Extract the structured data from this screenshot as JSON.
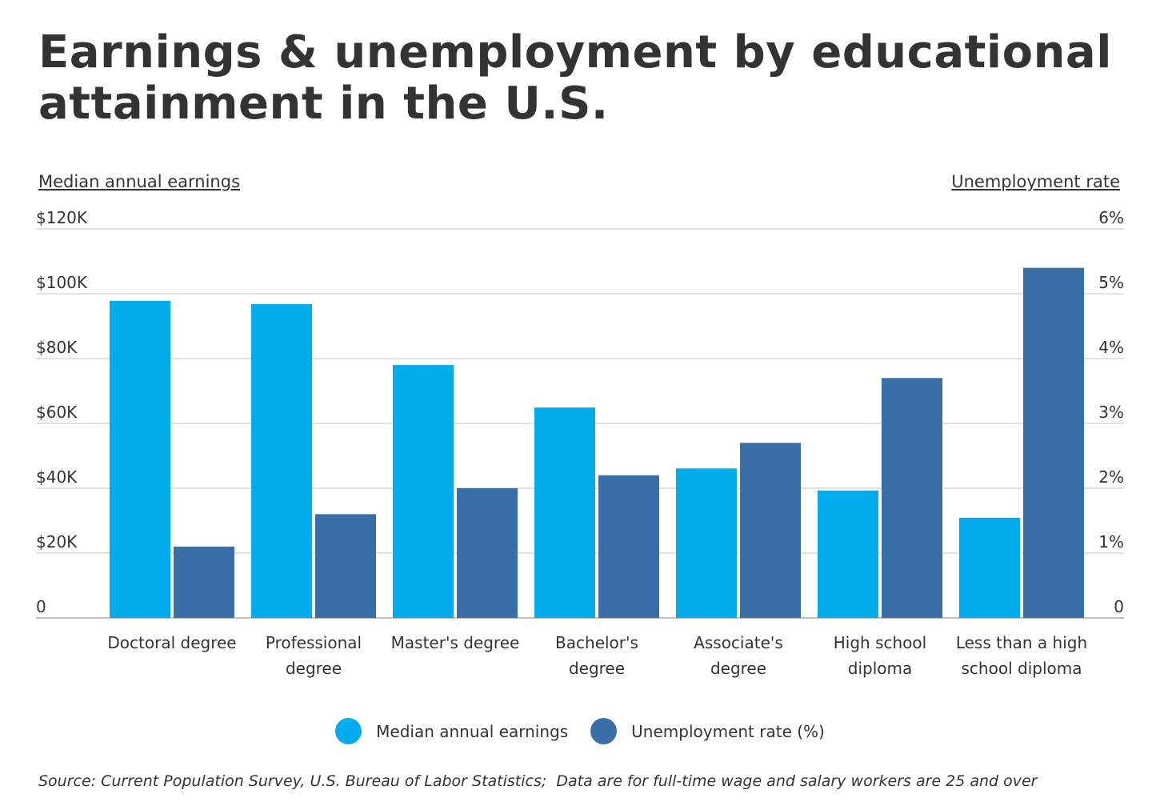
{
  "title": "Earnings & unemployment by educational attainment in the U.S.",
  "left_axis_title": "Median annual earnings",
  "right_axis_title": "Unemployment rate",
  "source": "Source: Current Population Survey, U.S. Bureau of Labor Statistics;  Data are for full-time wage and salary workers are 25 and over",
  "colors": {
    "earnings": "#00ACEC",
    "unemployment": "#3A6EA7",
    "grid": "#D9D9D9",
    "axis": "#BFBFBF",
    "text": "#333333"
  },
  "chart_data": {
    "type": "bar",
    "title": "Earnings & unemployment by educational attainment in the U.S.",
    "categories": [
      [
        "Doctoral degree"
      ],
      [
        "Professional",
        "degree"
      ],
      [
        "Master's degree"
      ],
      [
        "Bachelor's",
        "degree"
      ],
      [
        "Associate's",
        "degree"
      ],
      [
        "High school",
        "diploma"
      ],
      [
        "Less than a high",
        "school diploma"
      ]
    ],
    "series": [
      {
        "name": "Median annual earnings",
        "axis": "left",
        "values": [
          97800,
          96800,
          78000,
          64900,
          46100,
          39300,
          30900
        ]
      },
      {
        "name": "Unemployment rate (%)",
        "axis": "right",
        "values": [
          1.1,
          1.6,
          2.0,
          2.2,
          2.7,
          3.7,
          5.4
        ]
      }
    ],
    "left_axis": {
      "label": "Median annual earnings",
      "ylim": [
        0,
        120000
      ],
      "ticks": [
        0,
        20000,
        40000,
        60000,
        80000,
        100000,
        120000
      ],
      "tick_labels": [
        "0",
        "$20K",
        "$40K",
        "$60K",
        "$80K",
        "$100K",
        "$120K"
      ]
    },
    "right_axis": {
      "label": "Unemployment rate",
      "ylim": [
        0,
        6
      ],
      "ticks": [
        0,
        1,
        2,
        3,
        4,
        5,
        6
      ],
      "tick_labels": [
        "0",
        "1%",
        "2%",
        "3%",
        "4%",
        "5%",
        "6%"
      ]
    },
    "grid": true,
    "legend": "bottom-center"
  }
}
